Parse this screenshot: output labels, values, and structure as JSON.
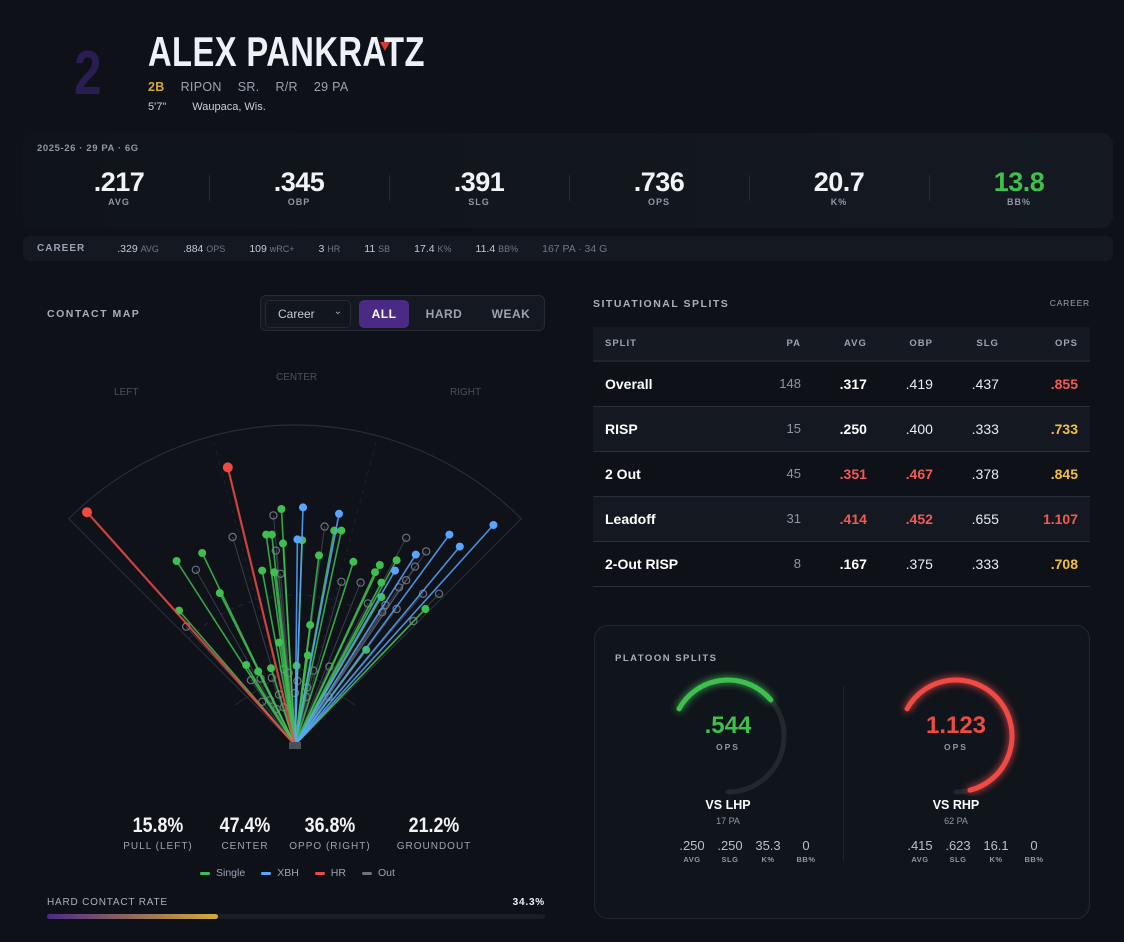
{
  "player": {
    "number": "2",
    "name": "ALEX PANKRATZ",
    "position": "2B",
    "school": "RIPON",
    "class": "SR.",
    "bats_throws": "R/R",
    "pa": "29 PA",
    "height": "5'7\"",
    "hometown": "Waupaca, Wis."
  },
  "season": {
    "label": "2025-26 · 29 PA · 6G",
    "stats": [
      {
        "value": ".217",
        "label": "AVG"
      },
      {
        "value": ".345",
        "label": "OBP"
      },
      {
        "value": ".391",
        "label": "SLG"
      },
      {
        "value": ".736",
        "label": "OPS"
      },
      {
        "value": "20.7",
        "label": "K%"
      },
      {
        "value": "13.8",
        "label": "BB%",
        "color": "#3fbf50"
      }
    ]
  },
  "career": {
    "title": "CAREER",
    "items": [
      {
        "value": ".329",
        "unit": "AVG"
      },
      {
        "value": ".884",
        "unit": "OPS"
      },
      {
        "value": "109",
        "unit": "wRC+"
      },
      {
        "value": "3",
        "unit": "HR"
      },
      {
        "value": "11",
        "unit": "SB"
      },
      {
        "value": "17.4",
        "unit": "K%"
      },
      {
        "value": "11.4",
        "unit": "BB%"
      },
      {
        "value": "167 PA · 34 G",
        "unit": ""
      }
    ]
  },
  "contact_map": {
    "title": "CONTACT MAP",
    "period": "Career",
    "filters": [
      "ALL",
      "HARD",
      "WEAK"
    ],
    "active_filter": "ALL",
    "field_labels": {
      "left": "LEFT",
      "center": "CENTER",
      "right": "RIGHT"
    },
    "summary": [
      {
        "value": "15.8%",
        "label": "PULL (LEFT)"
      },
      {
        "value": "47.4%",
        "label": "CENTER"
      },
      {
        "value": "36.8%",
        "label": "OPPO (RIGHT)"
      },
      {
        "value": "21.2%",
        "label": "GROUNDOUT"
      }
    ],
    "legend": [
      {
        "label": "Single",
        "color": "#3fbf50"
      },
      {
        "label": "XBH",
        "color": "#58a6ff"
      },
      {
        "label": "HR",
        "color": "#f04a45"
      },
      {
        "label": "Out",
        "color": "#6b7280"
      }
    ],
    "hard_contact": {
      "label": "HARD CONTACT RATE",
      "value_text": "34.3%",
      "value": 34.3
    }
  },
  "chart_data": {
    "type": "scatter",
    "title": "Contact Map",
    "units": "feet from home plate (x: left negative, y: toward center field)",
    "fence_distance": 400,
    "series": [
      {
        "name": "Single",
        "color": "#3fbf50",
        "points": [
          [
            -148,
            230
          ],
          [
            -116,
            240
          ],
          [
            -94,
            190
          ],
          [
            -145,
            168
          ],
          [
            -17,
            295
          ],
          [
            -36,
            263
          ],
          [
            -29,
            263
          ],
          [
            -15,
            252
          ],
          [
            9,
            256
          ],
          [
            -41,
            218
          ],
          [
            -26,
            216
          ],
          [
            30,
            237
          ],
          [
            49,
            268
          ],
          [
            58,
            268
          ],
          [
            73,
            229
          ],
          [
            106,
            225
          ],
          [
            100,
            216
          ],
          [
            127,
            231
          ],
          [
            108,
            203
          ],
          [
            108,
            185
          ],
          [
            163,
            170
          ],
          [
            89,
            119
          ],
          [
            19,
            150
          ],
          [
            -20,
            128
          ],
          [
            16,
            112
          ],
          [
            2,
            99
          ],
          [
            -30,
            96
          ],
          [
            -46,
            92
          ],
          [
            -61,
            100
          ]
        ]
      },
      {
        "name": "XBH",
        "color": "#58a6ff",
        "points": [
          [
            10,
            297
          ],
          [
            55,
            289
          ],
          [
            3,
            257
          ],
          [
            151,
            238
          ],
          [
            125,
            218
          ],
          [
            193,
            263
          ],
          [
            206,
            248
          ],
          [
            248,
            275
          ]
        ]
      },
      {
        "name": "HR",
        "color": "#f04a45",
        "points": [
          [
            -260,
            291
          ],
          [
            -84,
            347
          ]
        ]
      },
      {
        "name": "Out",
        "color": "#6b7280",
        "points": [
          [
            -27,
            287
          ],
          [
            -78,
            260
          ],
          [
            -124,
            219
          ],
          [
            -24,
            243
          ],
          [
            -18,
            214
          ],
          [
            37,
            273
          ],
          [
            58,
            204
          ],
          [
            82,
            203
          ],
          [
            139,
            259
          ],
          [
            164,
            242
          ],
          [
            150,
            223
          ],
          [
            139,
            206
          ],
          [
            130,
            197
          ],
          [
            160,
            189
          ],
          [
            180,
            189
          ],
          [
            91,
            177
          ],
          [
            113,
            175
          ],
          [
            127,
            170
          ],
          [
            109,
            166
          ],
          [
            148,
            155
          ],
          [
            -136,
            148
          ],
          [
            -55,
            81
          ],
          [
            -43,
            83
          ],
          [
            -29,
            84
          ],
          [
            -14,
            95
          ],
          [
            -8,
            90
          ],
          [
            -20,
            63
          ],
          [
            -41,
            54
          ],
          [
            -31,
            56
          ],
          [
            3,
            80
          ],
          [
            0,
            65
          ],
          [
            15,
            72
          ],
          [
            23,
            93
          ],
          [
            43,
            98
          ],
          [
            14,
            60
          ],
          [
            -23,
            45
          ],
          [
            -14,
            47
          ],
          [
            42,
            60
          ]
        ]
      }
    ]
  },
  "situational": {
    "title": "SITUATIONAL SPLITS",
    "scope": "CAREER",
    "columns": [
      "SPLIT",
      "PA",
      "AVG",
      "OBP",
      "SLG",
      "OPS"
    ],
    "rows": [
      {
        "split": "Overall",
        "pa": "148",
        "avg": ".317",
        "obp": ".419",
        "slg": ".437",
        "ops": ".855",
        "avg_c": "#ffffff",
        "obp_c": "#e8ecf3",
        "ops_c": "#f25a55"
      },
      {
        "split": "RISP",
        "pa": "15",
        "avg": ".250",
        "obp": ".400",
        "slg": ".333",
        "ops": ".733",
        "avg_c": "#ffffff",
        "obp_c": "#e8ecf3",
        "ops_c": "#f0c040"
      },
      {
        "split": "2 Out",
        "pa": "45",
        "avg": ".351",
        "obp": ".467",
        "slg": ".378",
        "ops": ".845",
        "avg_c": "#f25a55",
        "obp_c": "#f25a55",
        "ops_c": "#f0c040"
      },
      {
        "split": "Leadoff",
        "pa": "31",
        "avg": ".414",
        "obp": ".452",
        "slg": ".655",
        "ops": "1.107",
        "avg_c": "#f25a55",
        "obp_c": "#f25a55",
        "ops_c": "#f25a55"
      },
      {
        "split": "2-Out RISP",
        "pa": "8",
        "avg": ".167",
        "obp": ".375",
        "slg": ".333",
        "ops": ".708",
        "avg_c": "#ffffff",
        "obp_c": "#e8ecf3",
        "ops_c": "#f0c040"
      }
    ]
  },
  "platoon": {
    "title": "PLATOON SPLITS",
    "sides": [
      {
        "vs": "VS LHP",
        "pa": "17 PA",
        "ops": ".544",
        "ops_label": "OPS",
        "fill": 0.46,
        "color": "#3fbf50",
        "stats": [
          {
            "v": ".250",
            "l": "AVG"
          },
          {
            "v": ".250",
            "l": "SLG"
          },
          {
            "v": "35.3",
            "l": "K%"
          },
          {
            "v": "0",
            "l": "BB%"
          }
        ]
      },
      {
        "vs": "VS RHP",
        "pa": "62 PA",
        "ops": "1.123",
        "ops_label": "OPS",
        "fill": 0.94,
        "color": "#f04a45",
        "stats": [
          {
            "v": ".415",
            "l": "AVG"
          },
          {
            "v": ".623",
            "l": "SLG"
          },
          {
            "v": "16.1",
            "l": "K%"
          },
          {
            "v": "0",
            "l": "BB%"
          }
        ]
      }
    ]
  }
}
